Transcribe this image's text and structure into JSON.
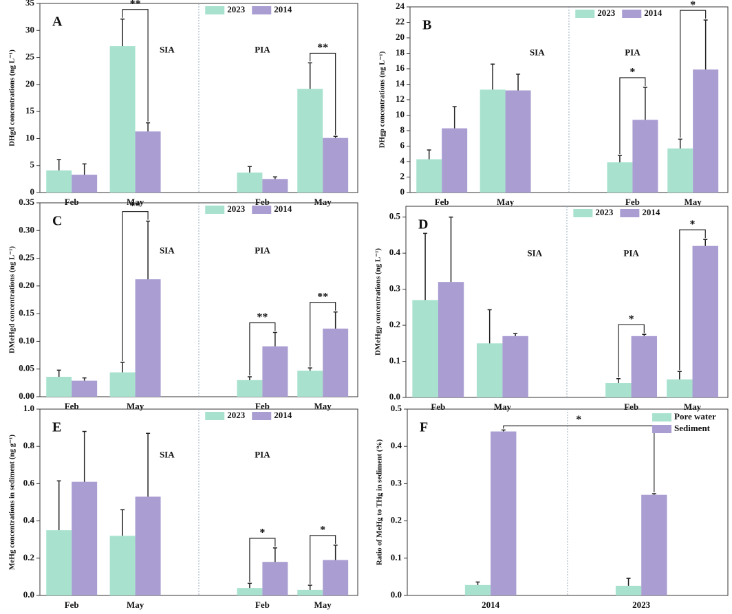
{
  "chart_data": [
    {
      "type": "bar",
      "panel": "A",
      "ylabel": "DHgd concentrations (ng L⁻¹)",
      "categories": [
        "Feb",
        "May",
        "Feb",
        "May"
      ],
      "regions": [
        "SIA",
        "PIA"
      ],
      "series": [
        {
          "name": "2023",
          "color": "#a8e2cf",
          "values": [
            4.1,
            27.1,
            3.7,
            19.2
          ],
          "errors": [
            2.0,
            5.0,
            1.1,
            4.8
          ]
        },
        {
          "name": "2014",
          "color": "#a99dd2",
          "values": [
            3.3,
            11.3,
            2.5,
            10.1
          ],
          "errors": [
            2.0,
            1.6,
            0.4,
            0.3
          ]
        }
      ],
      "significance": [
        null,
        "**",
        null,
        "**"
      ],
      "ylim": [
        0,
        35
      ],
      "yticks": [
        0,
        5,
        10,
        15,
        20,
        25,
        30,
        35
      ],
      "legend": "upper center"
    },
    {
      "type": "bar",
      "panel": "B",
      "ylabel": "DHgp concentrations (ng L⁻¹)",
      "categories": [
        "Feb",
        "May",
        "Feb",
        "May"
      ],
      "regions": [
        "SIA",
        "PIA"
      ],
      "series": [
        {
          "name": "2023",
          "color": "#a8e2cf",
          "values": [
            4.3,
            13.3,
            3.9,
            5.7
          ],
          "errors": [
            1.2,
            3.3,
            0.9,
            1.2
          ]
        },
        {
          "name": "2014",
          "color": "#a99dd2",
          "values": [
            8.3,
            13.2,
            9.4,
            15.9
          ],
          "errors": [
            2.8,
            2.1,
            4.2,
            6.4
          ]
        }
      ],
      "significance": [
        null,
        null,
        "*",
        "*"
      ],
      "ylim": [
        0,
        24
      ],
      "yticks": [
        0,
        2,
        4,
        6,
        8,
        10,
        12,
        14,
        16,
        18,
        20,
        22,
        24
      ],
      "legend": "upper center"
    },
    {
      "type": "bar",
      "panel": "C",
      "ylabel": "DMeHgd concentrations (ng L⁻¹)",
      "categories": [
        "Feb",
        "May",
        "Feb",
        "May"
      ],
      "regions": [
        "SIA",
        "PIA"
      ],
      "series": [
        {
          "name": "2023",
          "color": "#a8e2cf",
          "values": [
            0.036,
            0.044,
            0.03,
            0.047
          ],
          "errors": [
            0.012,
            0.018,
            0.006,
            0.005
          ]
        },
        {
          "name": "2014",
          "color": "#a99dd2",
          "values": [
            0.029,
            0.212,
            0.091,
            0.123
          ],
          "errors": [
            0.005,
            0.105,
            0.025,
            0.03
          ]
        }
      ],
      "significance": [
        null,
        "**",
        "**",
        "**"
      ],
      "ylim": [
        0,
        0.35
      ],
      "yticks": [
        {
          "value": 0,
          "label": "0.00"
        },
        {
          "value": 0.05,
          "label": "0.05"
        },
        {
          "value": 0.1,
          "label": "0.10"
        },
        {
          "value": 0.15,
          "label": "0.15"
        },
        {
          "value": 0.2,
          "label": "0.20"
        },
        {
          "value": 0.25,
          "label": "0.25"
        },
        {
          "value": 0.3,
          "label": "0.30"
        },
        {
          "value": 0.35,
          "label": "0.35"
        }
      ],
      "legend": "upper center"
    },
    {
      "type": "bar",
      "panel": "D",
      "ylabel": "DMeHgp concentrations (ng L⁻¹)",
      "categories": [
        "Feb",
        "May",
        "Feb",
        "May"
      ],
      "regions": [
        "SIA",
        "PIA"
      ],
      "series": [
        {
          "name": "2023",
          "color": "#a8e2cf",
          "values": [
            0.27,
            0.15,
            0.04,
            0.05
          ],
          "errors": [
            0.185,
            0.093,
            0.012,
            0.022
          ]
        },
        {
          "name": "2014",
          "color": "#a99dd2",
          "values": [
            0.32,
            0.17,
            0.17,
            0.42
          ],
          "errors": [
            0.18,
            0.007,
            0.005,
            0.018
          ]
        }
      ],
      "significance": [
        null,
        null,
        "*",
        "*"
      ],
      "ylim": [
        0,
        0.53
      ],
      "yticks": [
        {
          "value": 0,
          "label": "0.0"
        },
        0.1,
        0.2,
        0.3,
        0.4,
        0.5
      ],
      "legend": "upper center"
    },
    {
      "type": "bar",
      "panel": "E",
      "ylabel": "MeHg concentrations in sediment (ng g⁻¹)",
      "categories": [
        "Feb",
        "May",
        "Feb",
        "May"
      ],
      "regions": [
        "SIA",
        "PIA"
      ],
      "series": [
        {
          "name": "2023",
          "color": "#a8e2cf",
          "values": [
            0.35,
            0.32,
            0.04,
            0.03
          ],
          "errors": [
            0.265,
            0.14,
            0.025,
            0.025
          ]
        },
        {
          "name": "2014",
          "color": "#a99dd2",
          "values": [
            0.61,
            0.53,
            0.18,
            0.19
          ],
          "errors": [
            0.27,
            0.34,
            0.075,
            0.08
          ]
        }
      ],
      "significance": [
        null,
        null,
        "*",
        "*"
      ],
      "ylim": [
        0,
        1
      ],
      "yticks": [
        {
          "value": 0,
          "label": "0.0"
        },
        0.2,
        0.4,
        0.6,
        0.8,
        {
          "value": 1,
          "label": "1.0"
        }
      ],
      "legend": "upper center"
    },
    {
      "type": "bar",
      "panel": "F",
      "ylabel": "Ratio of MeHg to THg in sediment (%)",
      "categories": [
        "2014",
        "2023"
      ],
      "series": [
        {
          "name": "Pore water",
          "color": "#a8e2cf",
          "values": [
            0.028,
            0.026
          ],
          "errors": [
            0.008,
            0.02
          ]
        },
        {
          "name": "Sediment",
          "color": "#a99dd2",
          "values": [
            0.44,
            0.27
          ],
          "errors": [
            0.004,
            0.003
          ]
        }
      ],
      "significance": "*",
      "ylim": [
        0,
        0.5
      ],
      "yticks": [
        {
          "value": 0,
          "label": "0.0"
        },
        0.1,
        0.2,
        0.3,
        0.4,
        0.5
      ],
      "legend": "upper right"
    }
  ]
}
